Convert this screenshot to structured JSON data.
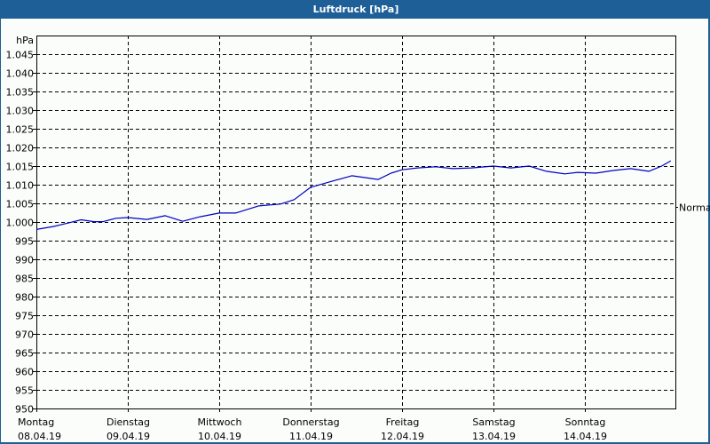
{
  "window": {
    "title": "Luftdruck [hPa]"
  },
  "colors": {
    "titlebar": "#1d5f96",
    "line": "#0000c0",
    "background": "#fbfdfb",
    "grid": "#000000"
  },
  "chart_data": {
    "type": "line",
    "title": "Luftdruck [hPa]",
    "xlabel": "",
    "ylabel": "hPa",
    "ylim": [
      950,
      1045
    ],
    "yticks": [
      950,
      955,
      960,
      965,
      970,
      975,
      980,
      985,
      990,
      995,
      1000,
      1005,
      1010,
      1015,
      1020,
      1025,
      1030,
      1035,
      1040,
      1045
    ],
    "ytick_labels": [
      "950",
      "955",
      "960",
      "965",
      "970",
      "975",
      "980",
      "985",
      "990",
      "995",
      "1.000",
      "1.005",
      "1.010",
      "1.015",
      "1.020",
      "1.025",
      "1.030",
      "1.035",
      "1.040",
      "1.045"
    ],
    "grid": true,
    "x_categories": [
      {
        "day": "Montag",
        "date": "08.04.19"
      },
      {
        "day": "Dienstag",
        "date": "09.04.19"
      },
      {
        "day": "Mittwoch",
        "date": "10.04.19"
      },
      {
        "day": "Donnerstag",
        "date": "11.04.19"
      },
      {
        "day": "Freitag",
        "date": "12.04.19"
      },
      {
        "day": "Samstag",
        "date": "13.04.19"
      },
      {
        "day": "Sonntag",
        "date": "14.04.19"
      }
    ],
    "reference_line": {
      "label": "Normal",
      "value": 1004
    },
    "series": [
      {
        "name": "Luftdruck",
        "x_days": [
          0,
          0.19,
          0.34,
          0.49,
          0.63,
          0.73,
          0.87,
          1.0,
          1.21,
          1.41,
          1.6,
          1.79,
          2.0,
          2.18,
          2.43,
          2.67,
          2.82,
          3.0,
          3.2,
          3.45,
          3.74,
          3.88,
          4.0,
          4.17,
          4.37,
          4.56,
          4.76,
          5.0,
          5.19,
          5.39,
          5.58,
          5.78,
          5.92,
          6.12,
          6.31,
          6.5,
          6.7,
          6.84,
          6.94
        ],
        "values": [
          998.0,
          998.8,
          999.7,
          1000.6,
          1000.1,
          1000.1,
          1001.0,
          1001.2,
          1000.7,
          1001.7,
          1000.2,
          1001.4,
          1002.4,
          1002.4,
          1004.3,
          1004.8,
          1006.0,
          1009.3,
          1010.7,
          1012.4,
          1011.4,
          1013.1,
          1014.0,
          1014.5,
          1014.8,
          1014.3,
          1014.5,
          1015.0,
          1014.5,
          1015.0,
          1013.6,
          1012.9,
          1013.3,
          1013.1,
          1013.8,
          1014.3,
          1013.6,
          1015.0,
          1016.4
        ]
      }
    ]
  }
}
